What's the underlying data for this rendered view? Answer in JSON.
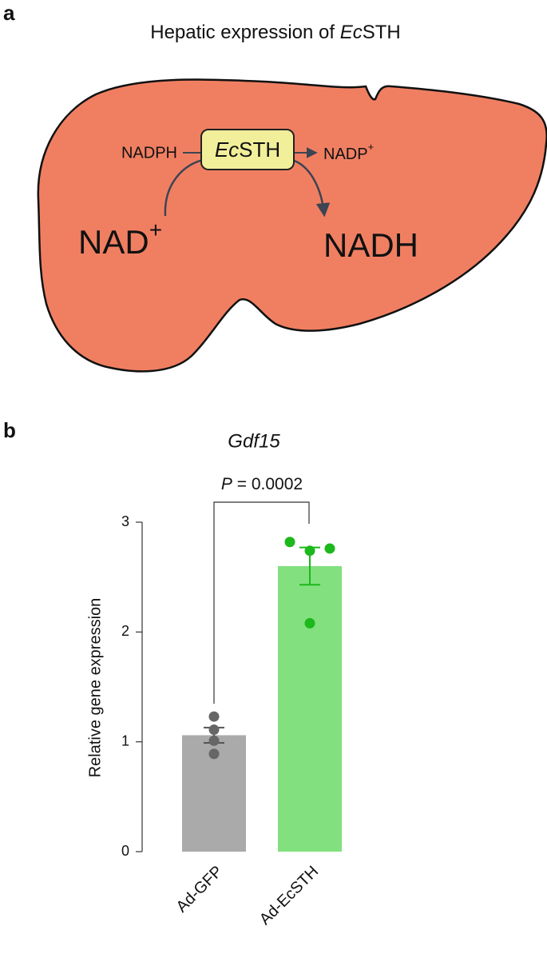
{
  "panel_a": {
    "label": "a",
    "title": [
      "Hepatic expression of ",
      "Ec",
      "STH"
    ],
    "enzyme": [
      "Ec",
      "STH"
    ],
    "cofactor_in": "NADPH",
    "cofactor_out": [
      "NADP",
      "+"
    ],
    "substrate": [
      "NAD",
      "+"
    ],
    "product": "NADH"
  },
  "chart_data": {
    "type": "bar",
    "panel_label": "b",
    "title": "Gdf15",
    "ylabel": "Relative gene expression",
    "categories": [
      "Ad-GFP",
      "Ad-EcSTH"
    ],
    "values": [
      1.06,
      2.6
    ],
    "errors": [
      0.07,
      0.17
    ],
    "points": [
      [
        1.23,
        1.11,
        1.01,
        0.89
      ],
      [
        2.82,
        2.74,
        2.76,
        2.08
      ]
    ],
    "bar_colors": [
      "#aaaaaa",
      "#82e07e"
    ],
    "point_colors": [
      "#666666",
      "#1db81b"
    ],
    "ylim": [
      0,
      3
    ],
    "yticks": [
      0,
      1,
      2,
      3
    ],
    "annotation": [
      "P",
      " = 0.0002"
    ]
  }
}
